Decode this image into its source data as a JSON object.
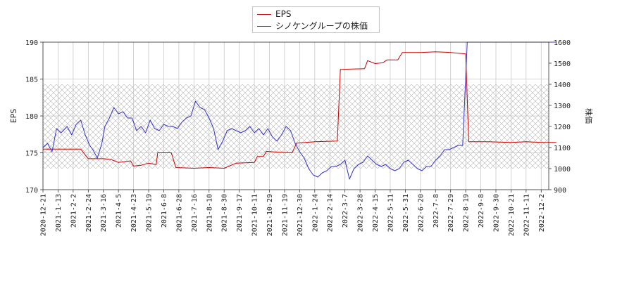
{
  "chart_data": {
    "type": "line",
    "xlabel": "",
    "y_left_label": "EPS",
    "y_right_label": "株価",
    "y_left_lim": [
      170,
      190
    ],
    "y_right_lim": [
      900,
      1600
    ],
    "y_left_ticks": [
      "170",
      "175",
      "180",
      "185",
      "190"
    ],
    "y_right_ticks": [
      "900",
      "1000",
      "1100",
      "1200",
      "1300",
      "1400",
      "1500",
      "1600"
    ],
    "x_tick_labels": [
      "2020-12-21",
      "2021-1-13",
      "2021-2-2",
      "2021-2-24",
      "2021-3-16",
      "2021-4-5",
      "2021-4-23",
      "2021-5-19",
      "2021-6-8",
      "2021-6-28",
      "2021-7-16",
      "2021-8-10",
      "2021-8-30",
      "2021-9-17",
      "2021-10-11",
      "2021-10-29",
      "2021-11-19",
      "2021-12-30",
      "2022-1-24",
      "2022-2-14",
      "2022-3-7",
      "2022-3-28",
      "2022-4-15",
      "2022-5-11",
      "2022-5-31",
      "2022-6-20",
      "2022-7-8",
      "2022-7-29",
      "2022-8-19",
      "2022-9-8",
      "2022-9-30",
      "2022-10-21",
      "2022-11-11",
      "2022-12-2"
    ],
    "grid": true,
    "shaded_band_right_axis": [
      1000,
      1400
    ],
    "legend_position": "top-center",
    "series": [
      {
        "name": "EPS",
        "axis": "left",
        "color": "#cc0000",
        "points": [
          [
            0,
            175.5
          ],
          [
            1.5,
            175.5
          ],
          [
            2.5,
            175.5
          ],
          [
            3,
            174.2
          ],
          [
            4,
            174.2
          ],
          [
            4.5,
            174.1
          ],
          [
            5,
            173.7
          ],
          [
            5.8,
            173.9
          ],
          [
            6,
            173.2
          ],
          [
            6.5,
            173.3
          ],
          [
            7,
            173.6
          ],
          [
            7.5,
            173.4
          ],
          [
            7.6,
            175.0
          ],
          [
            8.5,
            175.0
          ],
          [
            8.8,
            173.0
          ],
          [
            10,
            172.9
          ],
          [
            11,
            173.0
          ],
          [
            12,
            172.9
          ],
          [
            12.8,
            173.6
          ],
          [
            14,
            173.7
          ],
          [
            14.2,
            174.5
          ],
          [
            14.6,
            174.5
          ],
          [
            14.8,
            175.2
          ],
          [
            15.5,
            175.1
          ],
          [
            16.5,
            175.0
          ],
          [
            16.8,
            176.3
          ],
          [
            18,
            176.5
          ],
          [
            19.5,
            176.6
          ],
          [
            19.7,
            186.3
          ],
          [
            21.3,
            186.4
          ],
          [
            21.5,
            187.5
          ],
          [
            22,
            187.1
          ],
          [
            22.5,
            187.2
          ],
          [
            22.8,
            187.6
          ],
          [
            23.5,
            187.6
          ],
          [
            23.8,
            188.6
          ],
          [
            25,
            188.6
          ],
          [
            26,
            188.7
          ],
          [
            27,
            188.6
          ],
          [
            28,
            188.4
          ],
          [
            28.2,
            176.5
          ],
          [
            29.5,
            176.5
          ],
          [
            31,
            176.4
          ],
          [
            32,
            176.5
          ],
          [
            33,
            176.4
          ],
          [
            34,
            176.4
          ]
        ]
      },
      {
        "name": "シノケングループの株価",
        "axis": "right",
        "color": "#3333cc",
        "points": [
          [
            0,
            1100
          ],
          [
            0.3,
            1120
          ],
          [
            0.6,
            1080
          ],
          [
            0.9,
            1190
          ],
          [
            1.2,
            1170
          ],
          [
            1.6,
            1200
          ],
          [
            1.9,
            1160
          ],
          [
            2.2,
            1210
          ],
          [
            2.5,
            1230
          ],
          [
            2.8,
            1160
          ],
          [
            3.1,
            1110
          ],
          [
            3.3,
            1090
          ],
          [
            3.6,
            1050
          ],
          [
            3.9,
            1120
          ],
          [
            4.1,
            1200
          ],
          [
            4.4,
            1240
          ],
          [
            4.7,
            1290
          ],
          [
            5,
            1260
          ],
          [
            5.3,
            1270
          ],
          [
            5.6,
            1240
          ],
          [
            5.9,
            1240
          ],
          [
            6.2,
            1180
          ],
          [
            6.5,
            1200
          ],
          [
            6.8,
            1170
          ],
          [
            7.1,
            1230
          ],
          [
            7.4,
            1190
          ],
          [
            7.7,
            1180
          ],
          [
            8,
            1210
          ],
          [
            8.3,
            1200
          ],
          [
            8.6,
            1200
          ],
          [
            8.9,
            1190
          ],
          [
            9.2,
            1220
          ],
          [
            9.5,
            1240
          ],
          [
            9.8,
            1250
          ],
          [
            10.1,
            1320
          ],
          [
            10.4,
            1290
          ],
          [
            10.7,
            1280
          ],
          [
            11,
            1240
          ],
          [
            11.3,
            1190
          ],
          [
            11.6,
            1090
          ],
          [
            11.9,
            1130
          ],
          [
            12.2,
            1180
          ],
          [
            12.5,
            1190
          ],
          [
            12.8,
            1180
          ],
          [
            13.1,
            1170
          ],
          [
            13.4,
            1180
          ],
          [
            13.7,
            1200
          ],
          [
            14,
            1170
          ],
          [
            14.3,
            1190
          ],
          [
            14.6,
            1160
          ],
          [
            14.9,
            1190
          ],
          [
            15.2,
            1150
          ],
          [
            15.5,
            1130
          ],
          [
            15.8,
            1160
          ],
          [
            16.1,
            1200
          ],
          [
            16.4,
            1180
          ],
          [
            16.7,
            1120
          ],
          [
            17,
            1080
          ],
          [
            17.3,
            1050
          ],
          [
            17.6,
            1000
          ],
          [
            17.9,
            970
          ],
          [
            18.2,
            960
          ],
          [
            18.5,
            980
          ],
          [
            18.8,
            990
          ],
          [
            19.1,
            1010
          ],
          [
            19.4,
            1010
          ],
          [
            19.7,
            1020
          ],
          [
            20,
            1040
          ],
          [
            20.3,
            950
          ],
          [
            20.6,
            1000
          ],
          [
            20.9,
            1020
          ],
          [
            21.2,
            1030
          ],
          [
            21.5,
            1060
          ],
          [
            21.8,
            1040
          ],
          [
            22.1,
            1020
          ],
          [
            22.4,
            1010
          ],
          [
            22.7,
            1020
          ],
          [
            23,
            1000
          ],
          [
            23.3,
            990
          ],
          [
            23.6,
            1000
          ],
          [
            23.9,
            1030
          ],
          [
            24.2,
            1040
          ],
          [
            24.5,
            1020
          ],
          [
            24.8,
            1000
          ],
          [
            25.1,
            990
          ],
          [
            25.4,
            1010
          ],
          [
            25.7,
            1010
          ],
          [
            26,
            1040
          ],
          [
            26.3,
            1060
          ],
          [
            26.6,
            1090
          ],
          [
            26.9,
            1090
          ],
          [
            27.2,
            1100
          ],
          [
            27.5,
            1110
          ],
          [
            27.8,
            1110
          ],
          [
            28.1,
            1600
          ],
          [
            28.5,
            1600
          ],
          [
            29,
            1600
          ],
          [
            30,
            1600
          ],
          [
            31,
            1600
          ],
          [
            32,
            1600
          ],
          [
            33,
            1600
          ],
          [
            34,
            1600
          ]
        ]
      }
    ]
  }
}
